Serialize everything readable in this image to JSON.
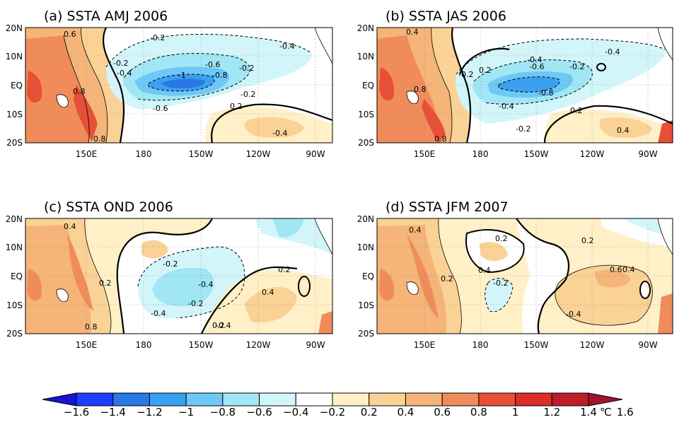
{
  "panels": [
    {
      "title": "(a) SSTA AMJ 2006",
      "lat_labels": [
        "20N",
        "10N",
        "EQ",
        "10S",
        "20S"
      ],
      "lon_labels": [
        "150E",
        "180",
        "150W",
        "120W",
        "90W"
      ],
      "contour_labels": [
        "0.6",
        "-0.2",
        "-0.4",
        "-0.2",
        "-0.4",
        "-0.6",
        "-0.2",
        "-1",
        "-0.8",
        "-0.2",
        "0.8",
        "-0.6",
        "0.2",
        "-0.4",
        "0.8"
      ]
    },
    {
      "title": "(b) SSTA JAS 2006",
      "lat_labels": [
        "20N",
        "10N",
        "EQ",
        "10S",
        "20S"
      ],
      "lon_labels": [
        "150E",
        "180",
        "150W",
        "120W",
        "90W"
      ],
      "contour_labels": [
        "0.4",
        "-0.4",
        "-0.4",
        "-0.6",
        "-0.2",
        "-0.2",
        "0.2",
        "0.8",
        "-0.8",
        "-0.4",
        "0.2",
        "-0.2",
        "0.4",
        "0.8"
      ]
    },
    {
      "title": "(c) SSTA OND 2006",
      "lat_labels": [
        "20N",
        "10N",
        "EQ",
        "10S",
        "20S"
      ],
      "lon_labels": [
        "150E",
        "180",
        "150W",
        "120W",
        "90W"
      ],
      "contour_labels": [
        "0.4",
        "-0.2",
        "-0.4",
        "0.2",
        "-0.4",
        "-0.2",
        "0.2",
        "-0.4",
        "0.4",
        "0.8",
        "0.2"
      ]
    },
    {
      "title": "(d) SSTA JFM 2007",
      "lat_labels": [
        "20N",
        "10N",
        "EQ",
        "10S",
        "20S"
      ],
      "lon_labels": [
        "150E",
        "180",
        "150W",
        "120W",
        "90W"
      ],
      "contour_labels": [
        "0.4",
        "0.2",
        "0.2",
        "0.4",
        "0.6",
        "0.4",
        "0.2",
        "-0.2",
        "-0.4"
      ]
    }
  ],
  "colorbar": {
    "unit": "℃",
    "tick_labels": [
      "−1.6",
      "−1.4",
      "−1.2",
      "−1",
      "−0.8",
      "−0.6",
      "−0.4",
      "−0.2",
      "0.2",
      "0.4",
      "0.6",
      "0.8",
      "1",
      "1.2",
      "1.4",
      "1.6"
    ],
    "colors": [
      "#1414d2",
      "#1e3cff",
      "#2878e6",
      "#3ca0f0",
      "#6ec8f5",
      "#a0e6f5",
      "#d2f5fa",
      "#ffffff",
      "#fff0c8",
      "#fad296",
      "#f5b478",
      "#f08c5a",
      "#e65037",
      "#dc2d28",
      "#be1e28",
      "#a0142d"
    ]
  }
}
